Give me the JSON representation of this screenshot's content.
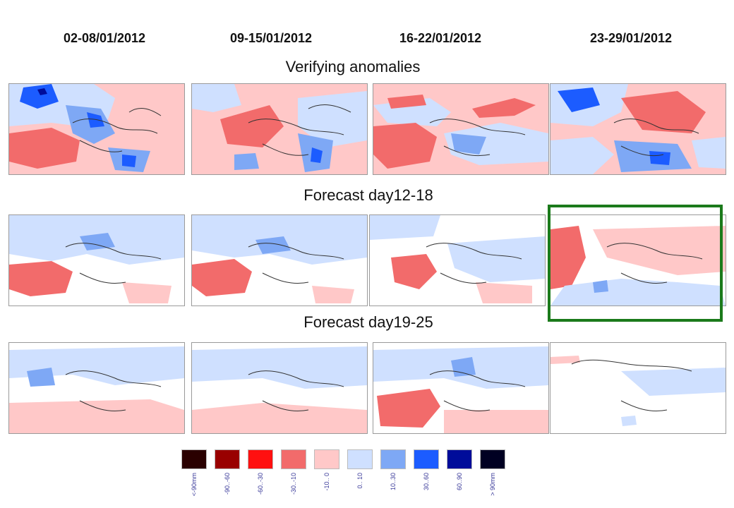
{
  "periods": [
    "02-08/01/2012",
    "09-15/01/2012",
    "16-22/01/2012",
    "23-29/01/2012"
  ],
  "rows": {
    "verifying": "Verifying  anomalies",
    "forecast_12_18": "Forecast day12-18",
    "forecast_19_25": "Forecast day19-25"
  },
  "legend": {
    "labels": [
      "<-90mm",
      "-90..-60",
      "-60..-30",
      "-30..-10",
      "-10.. 0",
      "0.. 10",
      "10..30",
      "30..60",
      "60..90",
      "> 90mm"
    ],
    "colors": [
      "#2a0000",
      "#990000",
      "#ff1010",
      "#f26b6b",
      "#ffc8c8",
      "#cfe0ff",
      "#7ea8f5",
      "#1c5cff",
      "#000c9a",
      "#000022"
    ]
  },
  "highlight_color": "#1b7a1b"
}
